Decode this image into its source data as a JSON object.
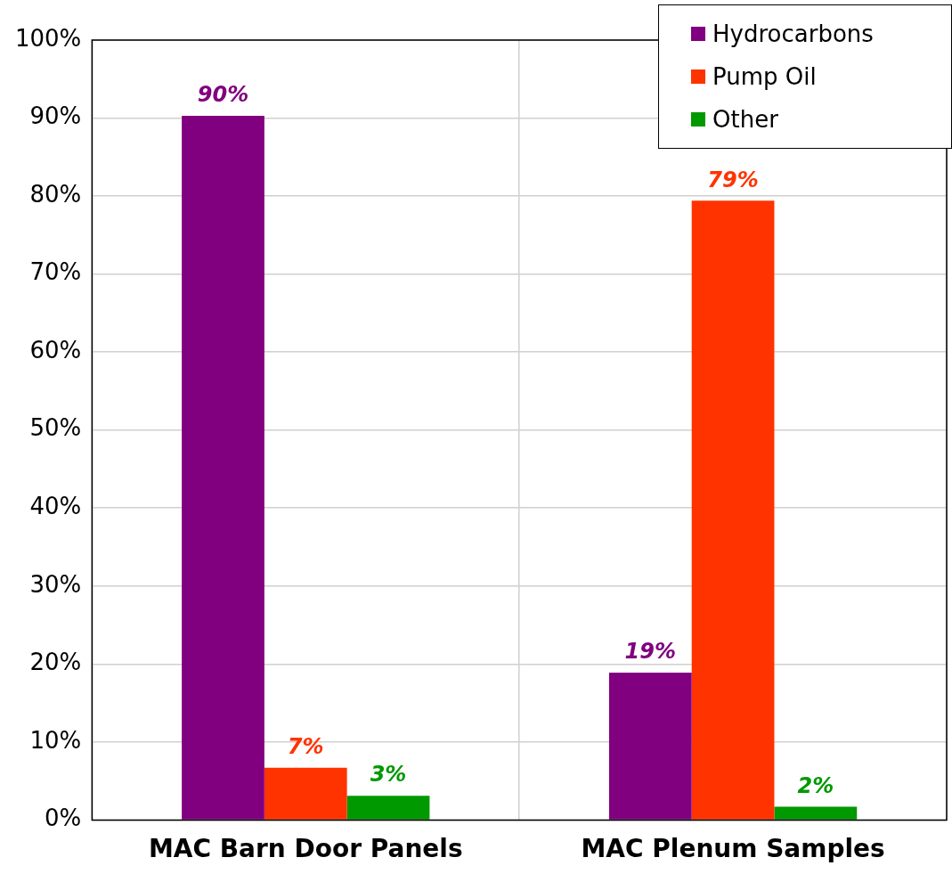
{
  "chart_data": {
    "type": "bar",
    "categories": [
      "MAC Barn Door Panels",
      "MAC Plenum Samples"
    ],
    "series": [
      {
        "name": "Hydrocarbons",
        "color": "#800080",
        "values": [
          90.3,
          18.9
        ],
        "value_labels": [
          "90%",
          "19%"
        ]
      },
      {
        "name": "Pump Oil",
        "color": "#ff3300",
        "values": [
          6.7,
          79.4
        ],
        "value_labels": [
          "7%",
          "79%"
        ]
      },
      {
        "name": "Other",
        "color": "#009900",
        "values": [
          3.1,
          1.7
        ],
        "value_labels": [
          "3%",
          "2%"
        ]
      }
    ],
    "ylim": [
      0,
      100
    ],
    "yticks": [
      {
        "value": 0,
        "label": "0%"
      },
      {
        "value": 10,
        "label": "10%"
      },
      {
        "value": 20,
        "label": "20%"
      },
      {
        "value": 30,
        "label": "30%"
      },
      {
        "value": 40,
        "label": "40%"
      },
      {
        "value": 50,
        "label": "50%"
      },
      {
        "value": 60,
        "label": "60%"
      },
      {
        "value": 70,
        "label": "70%"
      },
      {
        "value": 80,
        "label": "80%"
      },
      {
        "value": 90,
        "label": "90%"
      },
      {
        "value": 100,
        "label": "100%"
      }
    ],
    "grid": true,
    "legend": "top right"
  }
}
